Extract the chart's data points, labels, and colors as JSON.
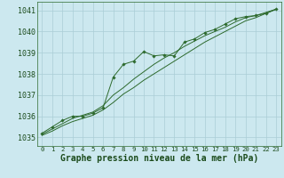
{
  "background_color": "#cce8ef",
  "grid_color": "#aacdd6",
  "line_color": "#2d6a2d",
  "xlim": [
    -0.5,
    23.5
  ],
  "ylim": [
    1034.6,
    1041.4
  ],
  "yticks": [
    1035,
    1036,
    1037,
    1038,
    1039,
    1040,
    1041
  ],
  "xticks": [
    0,
    1,
    2,
    3,
    4,
    5,
    6,
    7,
    8,
    9,
    10,
    11,
    12,
    13,
    14,
    15,
    16,
    17,
    18,
    19,
    20,
    21,
    22,
    23
  ],
  "series1_x": [
    0,
    1,
    2,
    3,
    4,
    5,
    6,
    7,
    8,
    9,
    10,
    11,
    12,
    13,
    14,
    15,
    16,
    17,
    18,
    19,
    20,
    21,
    22,
    23
  ],
  "series1_y": [
    1035.2,
    1035.5,
    1035.8,
    1036.0,
    1036.0,
    1036.15,
    1036.4,
    1037.85,
    1038.45,
    1038.6,
    1039.05,
    1038.85,
    1038.9,
    1038.85,
    1039.5,
    1039.65,
    1039.95,
    1040.1,
    1040.35,
    1040.6,
    1040.7,
    1040.75,
    1040.85,
    1041.05
  ],
  "series2_x": [
    0,
    1,
    2,
    3,
    4,
    5,
    6,
    7,
    8,
    9,
    10,
    11,
    12,
    13,
    14,
    15,
    16,
    17,
    18,
    19,
    20,
    21,
    22,
    23
  ],
  "series2_y": [
    1035.1,
    1035.3,
    1035.55,
    1035.75,
    1035.9,
    1036.05,
    1036.3,
    1036.65,
    1037.05,
    1037.35,
    1037.7,
    1038.0,
    1038.3,
    1038.6,
    1038.9,
    1039.2,
    1039.5,
    1039.75,
    1040.0,
    1040.25,
    1040.5,
    1040.65,
    1040.85,
    1041.05
  ],
  "series3_x": [
    0,
    1,
    2,
    3,
    4,
    5,
    6,
    7,
    8,
    9,
    10,
    11,
    12,
    13,
    14,
    15,
    16,
    17,
    18,
    19,
    20,
    21,
    22,
    23
  ],
  "series3_y": [
    1035.15,
    1035.4,
    1035.65,
    1035.9,
    1036.05,
    1036.2,
    1036.5,
    1037.0,
    1037.35,
    1037.75,
    1038.1,
    1038.45,
    1038.75,
    1039.0,
    1039.3,
    1039.55,
    1039.8,
    1040.0,
    1040.2,
    1040.45,
    1040.65,
    1040.75,
    1040.9,
    1041.05
  ],
  "label_text": "Graphe pression niveau de la mer (hPa)",
  "tick_fontsize": 6.0,
  "xtick_fontsize": 5.2,
  "label_fontsize": 7.0
}
